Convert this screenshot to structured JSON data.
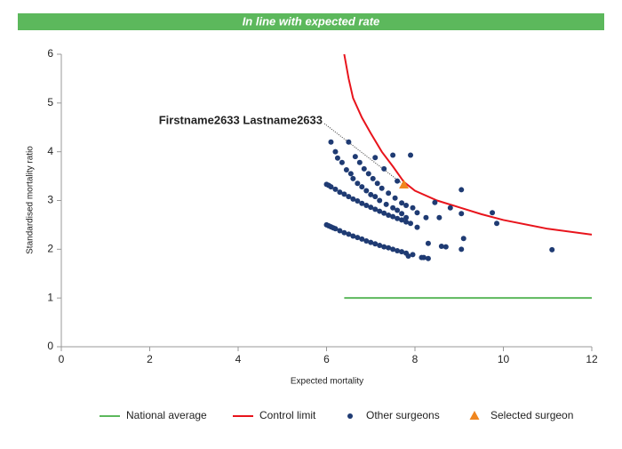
{
  "banner": "In line with expected rate",
  "chart_data": {
    "type": "scatter",
    "xlabel": "Expected mortality",
    "ylabel": "Standardised mortality ratio",
    "annotation": "Firstname2633 Lastname2633",
    "xlim": [
      0,
      12
    ],
    "ylim": [
      0,
      6
    ],
    "xticks": [
      0,
      2,
      4,
      6,
      8,
      10,
      12
    ],
    "yticks": [
      0,
      1,
      2,
      3,
      4,
      5,
      6
    ],
    "grid": false,
    "legend": "bottom",
    "series": [
      {
        "name": "National average",
        "type": "line",
        "color": "#5cb85c",
        "x": [
          6.4,
          12
        ],
        "values": [
          1,
          1
        ]
      },
      {
        "name": "Control limit",
        "type": "line",
        "color": "#e8141c",
        "x": [
          6.4,
          6.5,
          6.6,
          6.8,
          7.0,
          7.25,
          7.5,
          7.75,
          8.0,
          8.5,
          9.0,
          9.5,
          10,
          11,
          12
        ],
        "values": [
          6.0,
          5.5,
          5.1,
          4.7,
          4.38,
          4.0,
          3.7,
          3.38,
          3.2,
          3.0,
          2.86,
          2.72,
          2.6,
          2.42,
          2.3
        ]
      },
      {
        "name": "Other surgeons",
        "type": "scatter",
        "marker": "circle",
        "color": "#1f3b73",
        "x": [
          6.0,
          6.05,
          6.1,
          6.15,
          6.2,
          6.3,
          6.4,
          6.5,
          6.6,
          6.7,
          6.8,
          6.9,
          7.0,
          7.1,
          7.2,
          7.3,
          7.4,
          7.5,
          7.6,
          7.7,
          7.8,
          7.95,
          8.2,
          8.3,
          6.0,
          6.05,
          6.1,
          6.2,
          6.3,
          6.4,
          6.5,
          6.6,
          6.7,
          6.8,
          6.9,
          7.0,
          7.1,
          7.2,
          7.3,
          7.4,
          7.5,
          7.6,
          7.7,
          7.8,
          7.9,
          8.05,
          6.1,
          6.2,
          6.25,
          6.35,
          6.45,
          6.55,
          6.6,
          6.7,
          6.8,
          6.9,
          7.0,
          7.1,
          7.2,
          7.35,
          7.5,
          7.6,
          7.7,
          7.8,
          6.5,
          6.65,
          6.75,
          6.85,
          6.95,
          7.05,
          7.15,
          7.25,
          7.4,
          7.55,
          7.7,
          7.8,
          7.95,
          8.05,
          8.25,
          7.1,
          7.5,
          7.9,
          7.3,
          7.6,
          8.45,
          8.55,
          8.6,
          8.7,
          8.3,
          8.8,
          9.05,
          9.05,
          9.05,
          9.1,
          9.75,
          9.85,
          11.1,
          7.85,
          8.15
        ],
        "values": [
          2.5,
          2.48,
          2.46,
          2.44,
          2.42,
          2.38,
          2.34,
          2.31,
          2.27,
          2.24,
          2.21,
          2.17,
          2.14,
          2.11,
          2.08,
          2.05,
          2.03,
          2.0,
          1.97,
          1.95,
          1.92,
          1.89,
          1.83,
          1.81,
          3.33,
          3.31,
          3.28,
          3.23,
          3.17,
          3.13,
          3.08,
          3.03,
          2.99,
          2.94,
          2.9,
          2.86,
          2.82,
          2.78,
          2.74,
          2.7,
          2.67,
          2.63,
          2.6,
          2.56,
          2.53,
          2.45,
          4.2,
          4.0,
          3.87,
          3.78,
          3.63,
          3.55,
          3.45,
          3.35,
          3.28,
          3.2,
          3.12,
          3.08,
          3.0,
          2.92,
          2.85,
          2.8,
          2.73,
          2.65,
          4.2,
          3.9,
          3.78,
          3.65,
          3.55,
          3.45,
          3.35,
          3.25,
          3.15,
          3.05,
          2.95,
          2.9,
          2.85,
          2.75,
          2.65,
          3.88,
          3.93,
          3.93,
          3.65,
          3.4,
          2.96,
          2.65,
          2.06,
          2.05,
          2.12,
          2.85,
          3.22,
          2.73,
          2.0,
          2.22,
          2.75,
          2.53,
          1.99,
          1.86,
          1.83
        ]
      },
      {
        "name": "Selected surgeon",
        "type": "scatter",
        "marker": "triangle",
        "color": "#f0861e",
        "x": [
          7.75
        ],
        "values": [
          3.32
        ]
      }
    ]
  }
}
